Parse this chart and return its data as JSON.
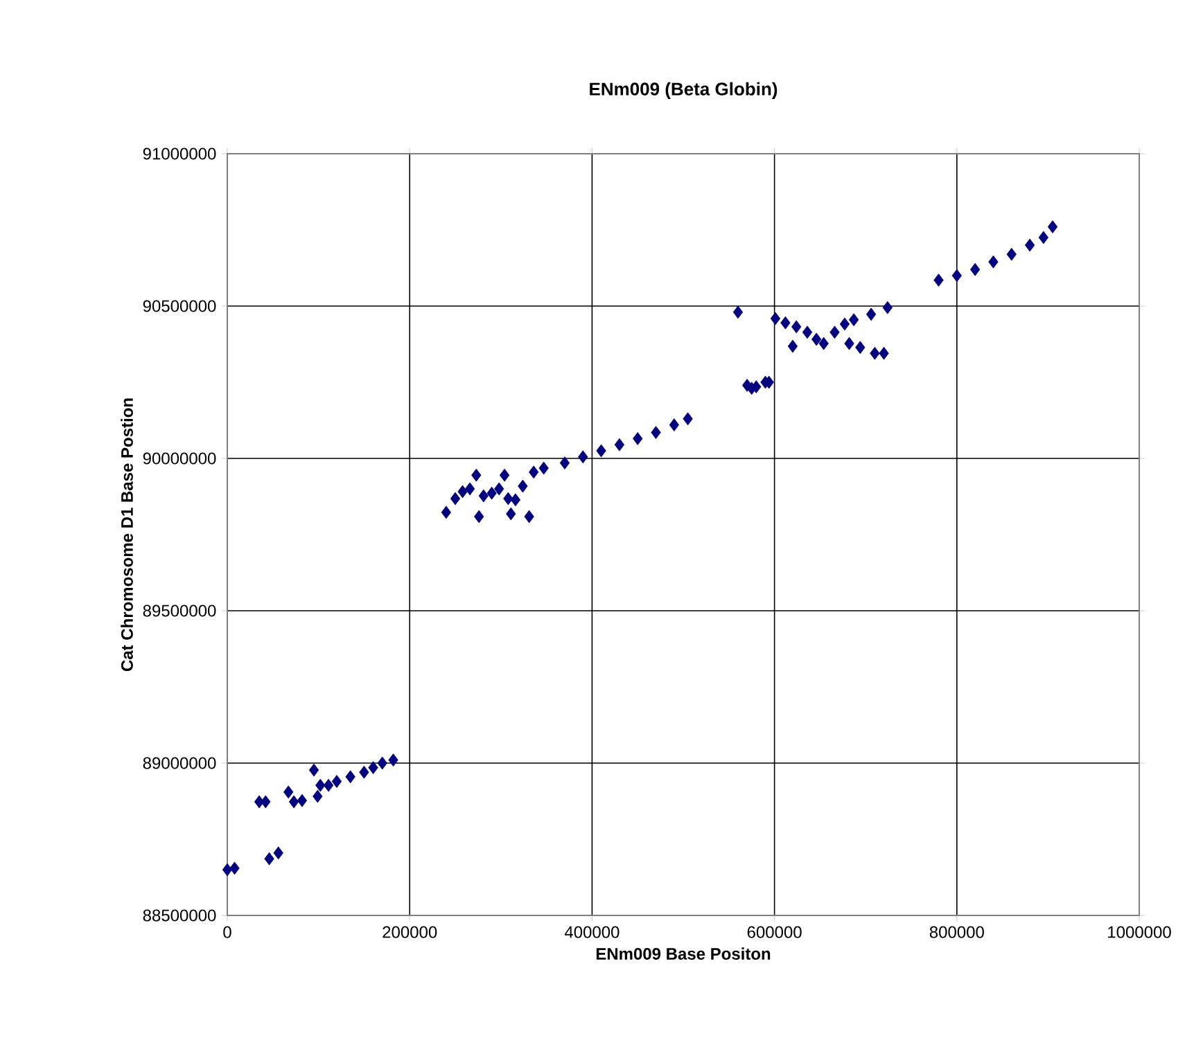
{
  "chart_data": {
    "type": "scatter",
    "title": "ENm009 (Beta Globin)",
    "xlabel": "ENm009 Base Positon",
    "ylabel": "Cat Chromosome D1 Base Postion",
    "xlim": [
      0,
      1000000
    ],
    "ylim": [
      88500000,
      91000000
    ],
    "xticks": [
      0,
      200000,
      400000,
      600000,
      800000,
      1000000
    ],
    "yticks": [
      88500000,
      89000000,
      89500000,
      90000000,
      90500000,
      91000000
    ],
    "grid": true,
    "marker": "diamond",
    "series": [
      {
        "color": "#000080",
        "x": [
          0,
          8000,
          35000,
          42000,
          46000,
          56000,
          67000,
          73000,
          82000,
          95000,
          99000,
          102000,
          111000,
          120000,
          135000,
          150000,
          160000,
          170000,
          182000,
          240000,
          250000,
          258000,
          266000,
          273000,
          276000,
          281000,
          290000,
          298000,
          304000,
          308000,
          311000,
          316000,
          324000,
          331000,
          336000,
          347000,
          370000,
          390000,
          410000,
          430000,
          450000,
          470000,
          490000,
          505000,
          560000,
          570000,
          575000,
          580000,
          590000,
          594000,
          601000,
          612000,
          620000,
          624000,
          636000,
          646000,
          654000,
          666000,
          677000,
          682000,
          687000,
          694000,
          706000,
          710000,
          720000,
          724000,
          780000,
          800000,
          820000,
          840000,
          860000,
          880000,
          895000,
          905000
        ],
        "values": [
          88650000,
          88655000,
          88873000,
          88873000,
          88686000,
          88705000,
          88905000,
          88873000,
          88877000,
          88977000,
          88891000,
          88927000,
          88927000,
          88940000,
          88955000,
          88970000,
          88985000,
          89000000,
          89010000,
          89823000,
          89868000,
          89891000,
          89900000,
          89945000,
          89809000,
          89877000,
          89886000,
          89900000,
          89945000,
          89868000,
          89818000,
          89864000,
          89909000,
          89809000,
          89955000,
          89968000,
          89985000,
          90005000,
          90025000,
          90045000,
          90065000,
          90085000,
          90110000,
          90130000,
          90480000,
          90240000,
          90230000,
          90235000,
          90250000,
          90250000,
          90459000,
          90445000,
          90368000,
          90432000,
          90414000,
          90391000,
          90377000,
          90414000,
          90441000,
          90377000,
          90455000,
          90364000,
          90473000,
          90345000,
          90345000,
          90495000,
          90585000,
          90600000,
          90620000,
          90645000,
          90670000,
          90700000,
          90725000,
          90760000
        ]
      }
    ]
  }
}
